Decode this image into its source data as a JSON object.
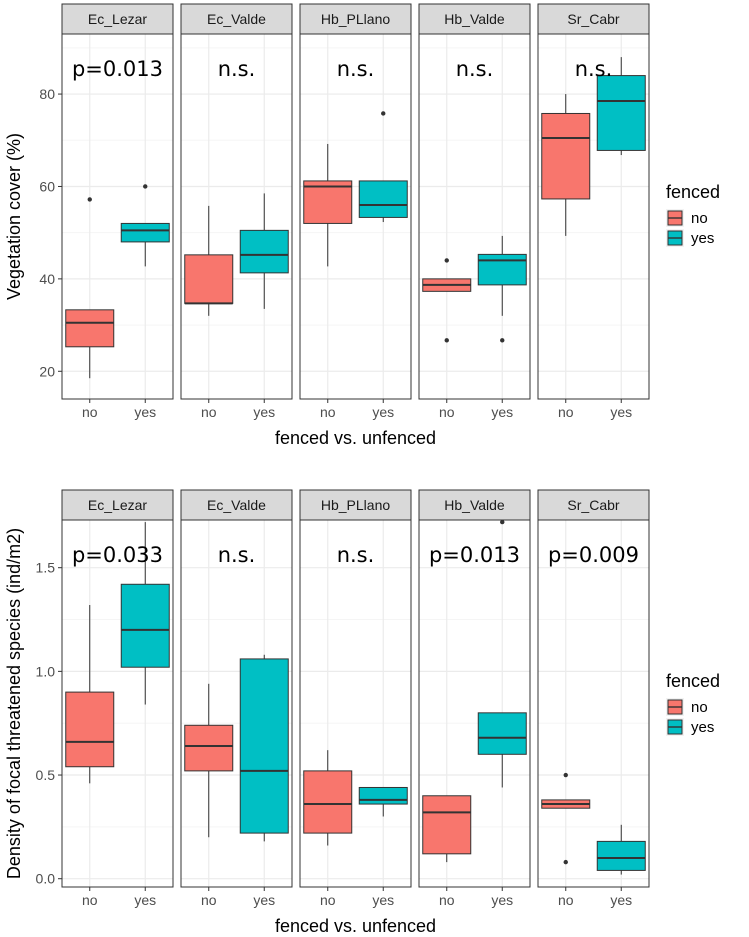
{
  "colors": {
    "no": "#F8766D",
    "yes": "#00BFC4",
    "panel_border": "#333333",
    "grid_major": "#EBEBEB",
    "grid_minor": "#F5F5F5",
    "strip_bg": "#D9D9D9"
  },
  "chart_data": [
    {
      "type": "boxplot",
      "xlabel": "fenced vs. unfenced",
      "ylabel": "Vegetation cover (%)",
      "ylim": [
        14,
        93
      ],
      "yticks": [
        20,
        40,
        60,
        80
      ],
      "categories": [
        "no",
        "yes"
      ],
      "legend": {
        "title": "fenced",
        "entries": [
          "no",
          "yes"
        ]
      },
      "facets": [
        {
          "name": "Ec_Lezar",
          "annotation": "p=0.013",
          "boxes": [
            {
              "group": "no",
              "min": 18.5,
              "q1": 25.3,
              "median": 30.5,
              "q3": 33.3,
              "max": 33.3,
              "outliers": [
                57.2
              ]
            },
            {
              "group": "yes",
              "min": 42.7,
              "q1": 48.0,
              "median": 50.5,
              "q3": 52.0,
              "max": 52.0,
              "outliers": [
                60.0
              ]
            }
          ]
        },
        {
          "name": "Ec_Valde",
          "annotation": "n.s.",
          "boxes": [
            {
              "group": "no",
              "min": 32.0,
              "q1": 34.7,
              "median": 34.7,
              "q3": 45.2,
              "max": 55.8,
              "outliers": []
            },
            {
              "group": "yes",
              "min": 33.5,
              "q1": 41.3,
              "median": 45.2,
              "q3": 50.5,
              "max": 58.5,
              "outliers": []
            }
          ]
        },
        {
          "name": "Hb_PLlano",
          "annotation": "n.s.",
          "boxes": [
            {
              "group": "no",
              "min": 42.7,
              "q1": 52.0,
              "median": 60.0,
              "q3": 61.2,
              "max": 69.2,
              "outliers": []
            },
            {
              "group": "yes",
              "min": 52.3,
              "q1": 53.3,
              "median": 56.0,
              "q3": 61.2,
              "max": 61.2,
              "outliers": [
                75.8
              ]
            }
          ]
        },
        {
          "name": "Hb_Valde",
          "annotation": "n.s.",
          "boxes": [
            {
              "group": "no",
              "min": 37.3,
              "q1": 37.3,
              "median": 38.7,
              "q3": 40.0,
              "max": 40.0,
              "outliers": [
                44.0,
                26.7
              ]
            },
            {
              "group": "yes",
              "min": 32.0,
              "q1": 38.7,
              "median": 44.0,
              "q3": 45.3,
              "max": 49.3,
              "outliers": [
                26.7
              ]
            }
          ]
        },
        {
          "name": "Sr_Cabr",
          "annotation": "n.s.",
          "boxes": [
            {
              "group": "no",
              "min": 49.3,
              "q1": 57.3,
              "median": 70.5,
              "q3": 75.8,
              "max": 80.0,
              "outliers": []
            },
            {
              "group": "yes",
              "min": 66.8,
              "q1": 67.8,
              "median": 78.5,
              "q3": 84.0,
              "max": 88.0,
              "outliers": []
            }
          ]
        }
      ]
    },
    {
      "type": "boxplot",
      "xlabel": "fenced vs. unfenced",
      "ylabel": "Density of focal threatened species (ind/m2)",
      "ylim": [
        -0.04,
        1.73
      ],
      "yticks": [
        0.0,
        0.5,
        1.0,
        1.5
      ],
      "ytick_labels": [
        "0.0",
        "0.5",
        "1.0",
        "1.5"
      ],
      "categories": [
        "no",
        "yes"
      ],
      "legend": {
        "title": "fenced",
        "entries": [
          "no",
          "yes"
        ]
      },
      "facets": [
        {
          "name": "Ec_Lezar",
          "annotation": "p=0.033",
          "boxes": [
            {
              "group": "no",
              "min": 0.46,
              "q1": 0.54,
              "median": 0.66,
              "q3": 0.9,
              "max": 1.32,
              "outliers": []
            },
            {
              "group": "yes",
              "min": 0.84,
              "q1": 1.02,
              "median": 1.2,
              "q3": 1.42,
              "max": 1.72,
              "outliers": []
            }
          ]
        },
        {
          "name": "Ec_Valde",
          "annotation": "n.s.",
          "boxes": [
            {
              "group": "no",
              "min": 0.2,
              "q1": 0.52,
              "median": 0.64,
              "q3": 0.74,
              "max": 0.94,
              "outliers": []
            },
            {
              "group": "yes",
              "min": 0.18,
              "q1": 0.22,
              "median": 0.52,
              "q3": 1.06,
              "max": 1.08,
              "outliers": []
            }
          ]
        },
        {
          "name": "Hb_PLlano",
          "annotation": "n.s.",
          "boxes": [
            {
              "group": "no",
              "min": 0.16,
              "q1": 0.22,
              "median": 0.36,
              "q3": 0.52,
              "max": 0.62,
              "outliers": []
            },
            {
              "group": "yes",
              "min": 0.3,
              "q1": 0.36,
              "median": 0.38,
              "q3": 0.44,
              "max": 0.44,
              "outliers": []
            }
          ]
        },
        {
          "name": "Hb_Valde",
          "annotation": "p=0.013",
          "boxes": [
            {
              "group": "no",
              "min": 0.08,
              "q1": 0.12,
              "median": 0.32,
              "q3": 0.4,
              "max": 0.4,
              "outliers": []
            },
            {
              "group": "yes",
              "min": 0.44,
              "q1": 0.6,
              "median": 0.68,
              "q3": 0.8,
              "max": 0.8,
              "outliers": [
                1.72
              ]
            }
          ]
        },
        {
          "name": "Sr_Cabr",
          "annotation": "p=0.009",
          "boxes": [
            {
              "group": "no",
              "min": 0.34,
              "q1": 0.34,
              "median": 0.36,
              "q3": 0.38,
              "max": 0.38,
              "outliers": [
                0.5,
                0.08
              ]
            },
            {
              "group": "yes",
              "min": 0.02,
              "q1": 0.04,
              "median": 0.1,
              "q3": 0.18,
              "max": 0.26,
              "outliers": []
            }
          ]
        }
      ]
    }
  ]
}
